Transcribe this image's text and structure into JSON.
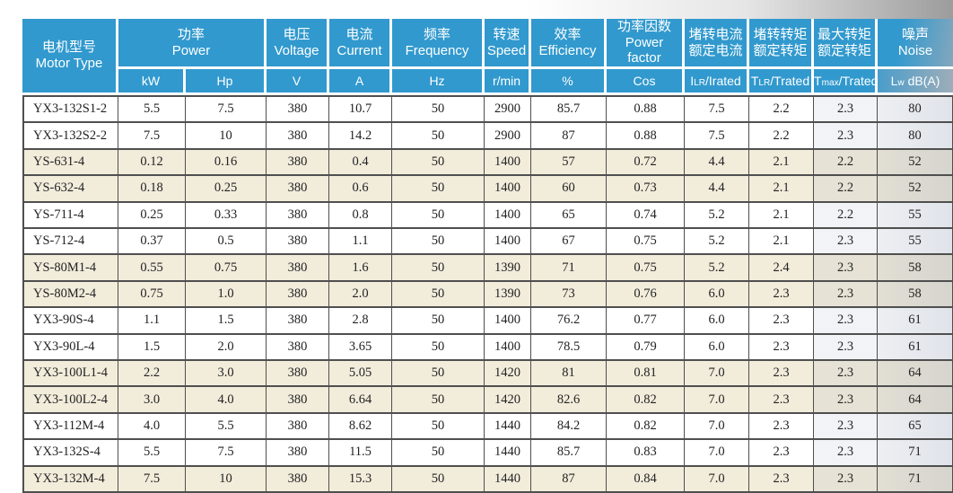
{
  "colors": {
    "header_blue": "#3199CE",
    "row_beige": "#F2ECDB",
    "grid_line": "#4F4F4F",
    "data_text": "#222222",
    "header_text": "#FFFFFF",
    "corner_shade": "#9C9C9C"
  },
  "table": {
    "header": {
      "motor_type": {
        "zh": "电机型号",
        "en": "Motor Type"
      },
      "power": {
        "zh": "功率",
        "en": "Power"
      },
      "voltage": {
        "zh": "电压",
        "en": "Voltage"
      },
      "current": {
        "zh": "电流",
        "en": "Current"
      },
      "frequency": {
        "zh": "频率",
        "en": "Frequency"
      },
      "speed": {
        "zh": "转速",
        "en": "Speed"
      },
      "efficiency": {
        "zh": "效率",
        "en": "Efficiency"
      },
      "power_factor": {
        "zh": "功率因数",
        "en_line1": "Power",
        "en_line2": "factor"
      },
      "locked_rotor_current": {
        "zh_line1": "堵转电流",
        "zh_line2": "额定电流"
      },
      "locked_rotor_torque": {
        "zh_line1": "堵转转矩",
        "zh_line2": "额定转矩"
      },
      "max_torque": {
        "zh_line1": "最大转矩",
        "zh_line2": "额定转矩"
      },
      "noise": {
        "zh": "噪声",
        "en": "Noise"
      },
      "units": {
        "kw": "kW",
        "hp": "Hp",
        "v": "V",
        "a": "A",
        "hz": "Hz",
        "rmin": "r/min",
        "pct": "%",
        "cos": "Cos",
        "ilr": {
          "base": "I",
          "sub": "LR",
          "rest": "/Irated"
        },
        "tlr": {
          "base": "T",
          "sub": "LR",
          "rest": "/Trated"
        },
        "tmax": {
          "base": "T",
          "sub": "max",
          "rest": "/Trated"
        },
        "lw": {
          "base": "L",
          "sub": "w",
          "rest": " dB(A)"
        }
      }
    },
    "rows": [
      [
        "YX3-132S1-2",
        "5.5",
        "7.5",
        "380",
        "10.7",
        "50",
        "2900",
        "85.7",
        "0.88",
        "7.5",
        "2.2",
        "2.3",
        "80"
      ],
      [
        "YX3-132S2-2",
        "7.5",
        "10",
        "380",
        "14.2",
        "50",
        "2900",
        "87",
        "0.88",
        "7.5",
        "2.2",
        "2.3",
        "80"
      ],
      [
        "YS-631-4",
        "0.12",
        "0.16",
        "380",
        "0.4",
        "50",
        "1400",
        "57",
        "0.72",
        "4.4",
        "2.1",
        "2.2",
        "52"
      ],
      [
        "YS-632-4",
        "0.18",
        "0.25",
        "380",
        "0.6",
        "50",
        "1400",
        "60",
        "0.73",
        "4.4",
        "2.1",
        "2.2",
        "52"
      ],
      [
        "YS-711-4",
        "0.25",
        "0.33",
        "380",
        "0.8",
        "50",
        "1400",
        "65",
        "0.74",
        "5.2",
        "2.1",
        "2.2",
        "55"
      ],
      [
        "YS-712-4",
        "0.37",
        "0.5",
        "380",
        "1.1",
        "50",
        "1400",
        "67",
        "0.75",
        "5.2",
        "2.1",
        "2.3",
        "55"
      ],
      [
        "YS-80M1-4",
        "0.55",
        "0.75",
        "380",
        "1.6",
        "50",
        "1390",
        "71",
        "0.75",
        "5.2",
        "2.4",
        "2.3",
        "58"
      ],
      [
        "YS-80M2-4",
        "0.75",
        "1.0",
        "380",
        "2.0",
        "50",
        "1390",
        "73",
        "0.76",
        "6.0",
        "2.3",
        "2.3",
        "58"
      ],
      [
        "YX3-90S-4",
        "1.1",
        "1.5",
        "380",
        "2.8",
        "50",
        "1400",
        "76.2",
        "0.77",
        "6.0",
        "2.3",
        "2.3",
        "61"
      ],
      [
        "YX3-90L-4",
        "1.5",
        "2.0",
        "380",
        "3.65",
        "50",
        "1400",
        "78.5",
        "0.79",
        "6.0",
        "2.3",
        "2.3",
        "61"
      ],
      [
        "YX3-100L1-4",
        "2.2",
        "3.0",
        "380",
        "5.05",
        "50",
        "1420",
        "81",
        "0.81",
        "7.0",
        "2.3",
        "2.3",
        "64"
      ],
      [
        "YX3-100L2-4",
        "3.0",
        "4.0",
        "380",
        "6.64",
        "50",
        "1420",
        "82.6",
        "0.82",
        "7.0",
        "2.3",
        "2.3",
        "64"
      ],
      [
        "YX3-112M-4",
        "4.0",
        "5.5",
        "380",
        "8.62",
        "50",
        "1440",
        "84.2",
        "0.82",
        "7.0",
        "2.3",
        "2.3",
        "65"
      ],
      [
        "YX3-132S-4",
        "5.5",
        "7.5",
        "380",
        "11.5",
        "50",
        "1440",
        "85.7",
        "0.83",
        "7.0",
        "2.3",
        "2.3",
        "71"
      ],
      [
        "YX3-132M-4",
        "7.5",
        "10",
        "380",
        "15.3",
        "50",
        "1440",
        "87",
        "0.84",
        "7.0",
        "2.3",
        "2.3",
        "71"
      ]
    ]
  }
}
